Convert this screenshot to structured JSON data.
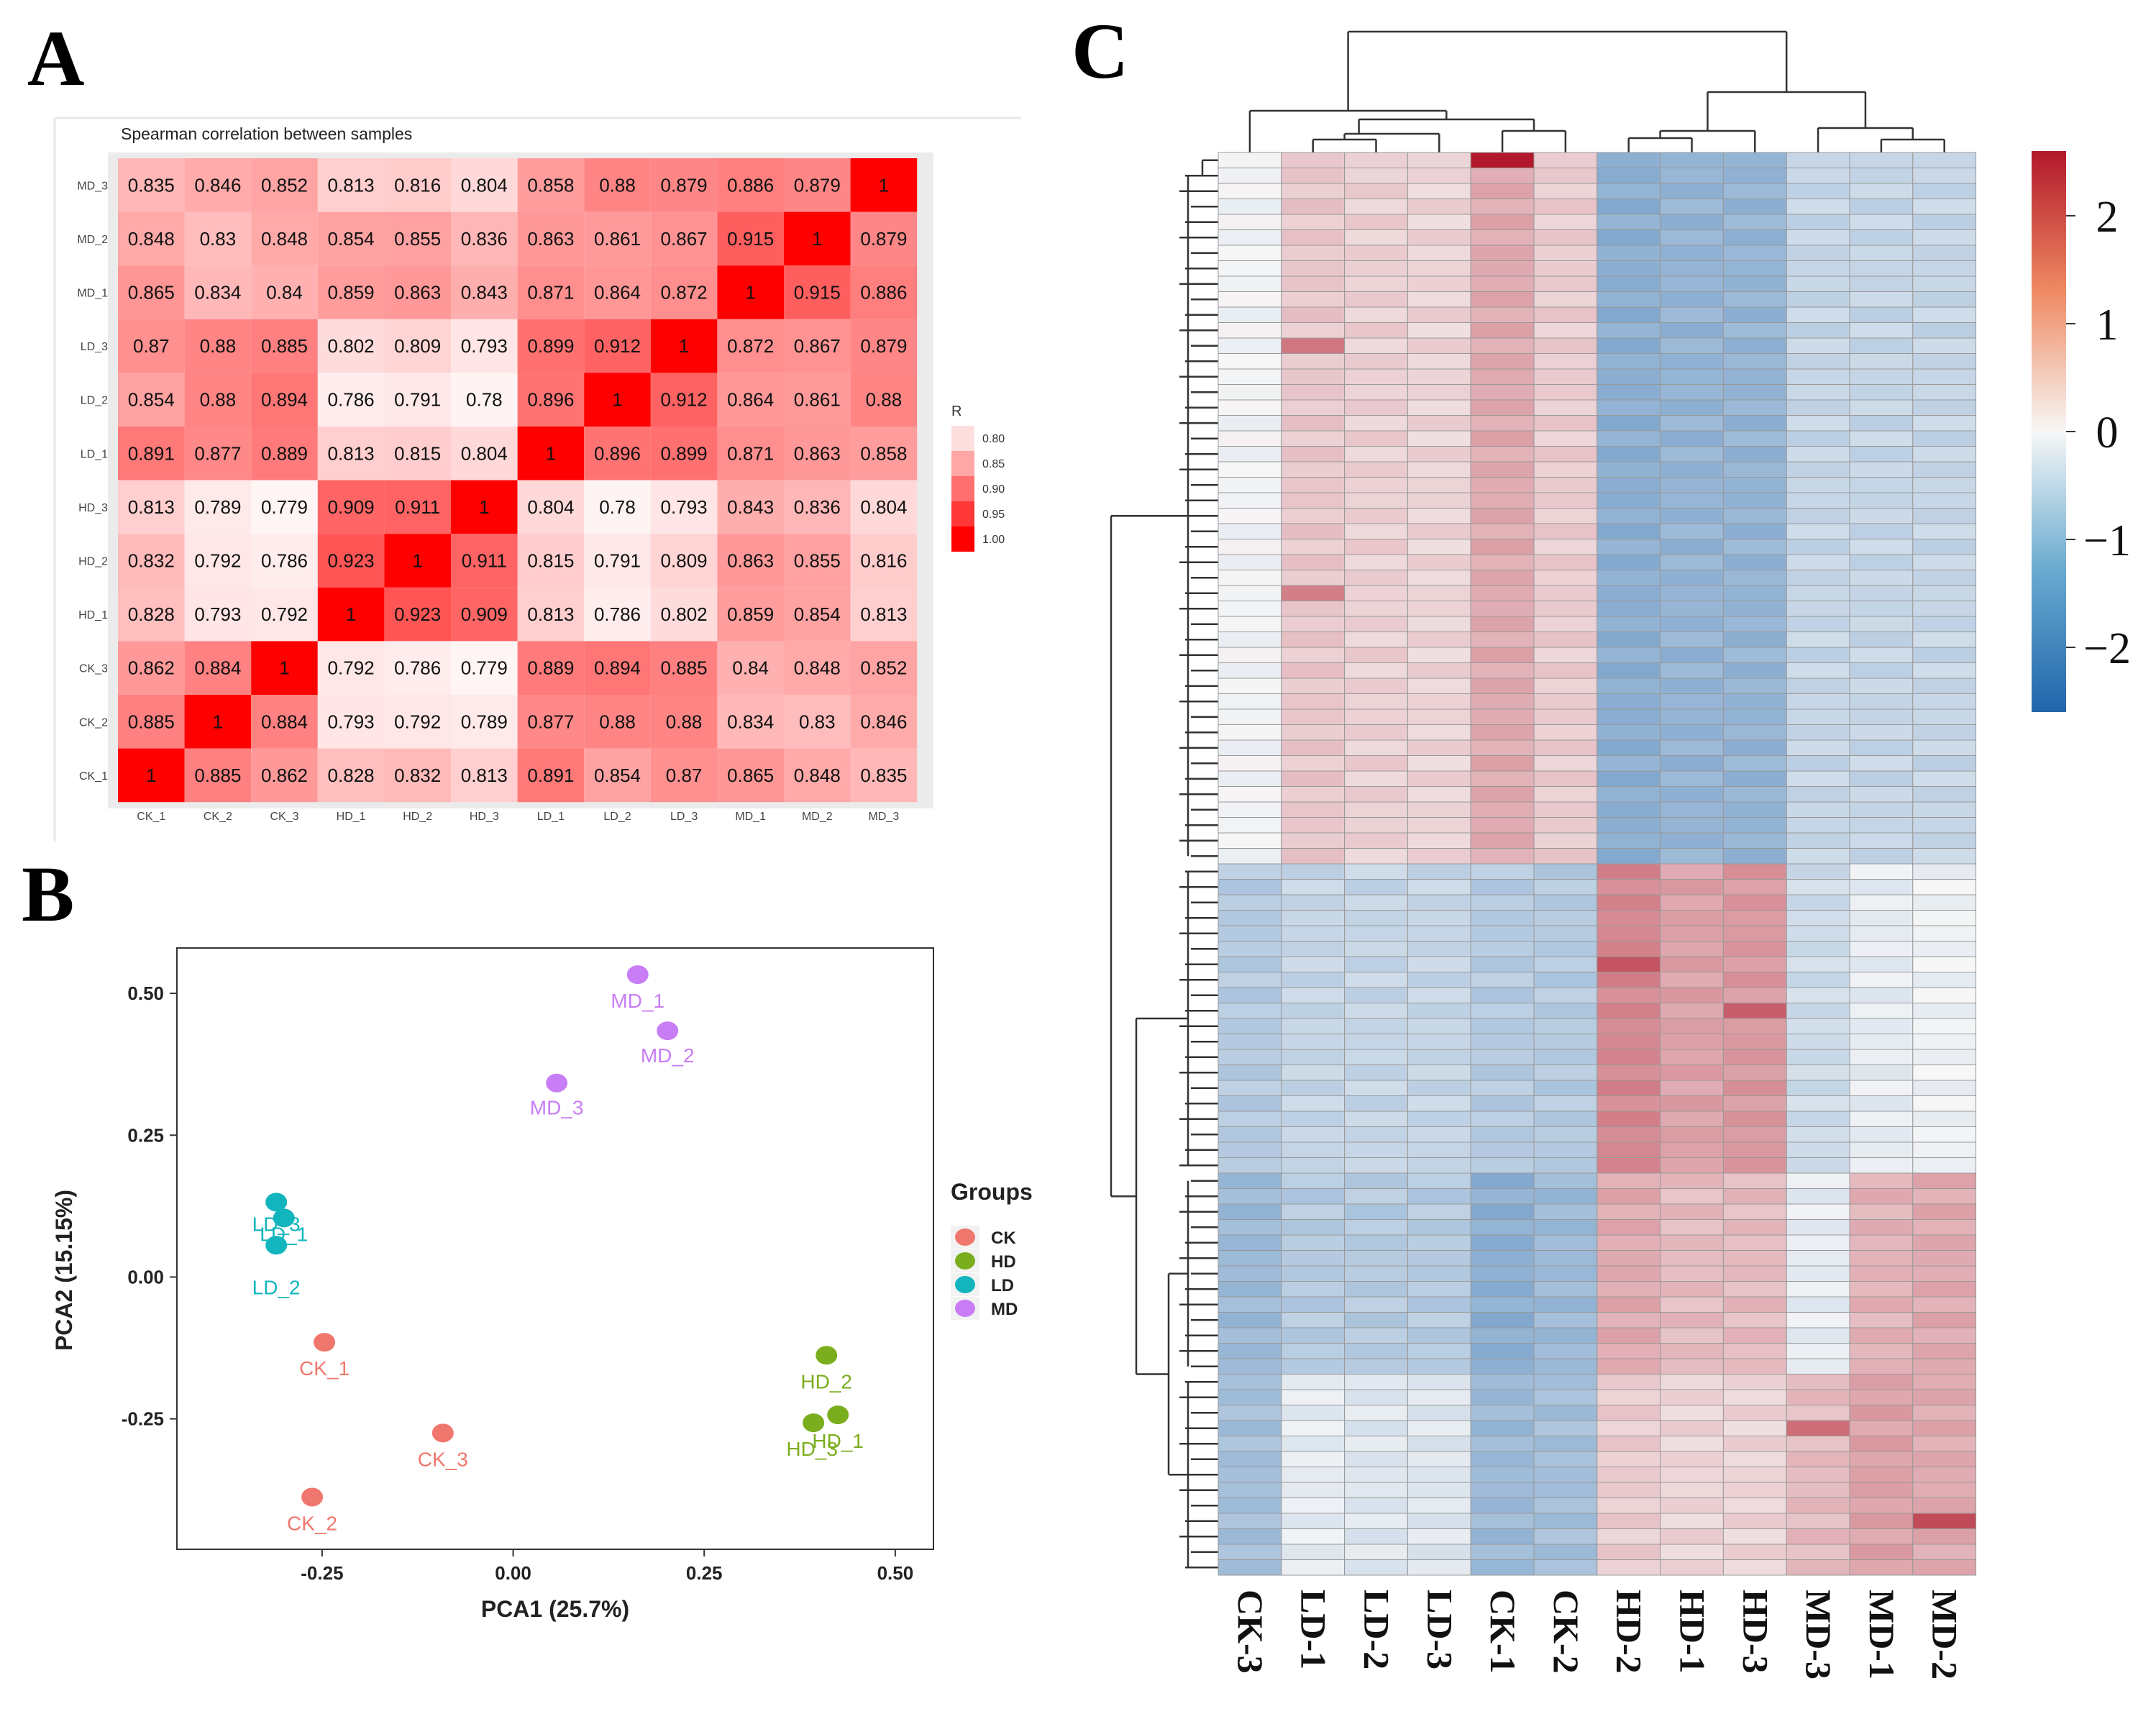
{
  "panel_labels": {
    "a": "A",
    "b": "B",
    "c": "C"
  },
  "colors": {
    "corr_low": "#ffffff",
    "corr_high": "#ff0000",
    "panel_bg": "#ebebeb",
    "ck": "#f0776d",
    "hd": "#7bae1e",
    "ld": "#12b5bd",
    "md": "#c87df5",
    "heat_low": "#2166ac",
    "heat_mid": "#f7f7f7",
    "heat_high": "#b2182b"
  },
  "chart_data": [
    {
      "type": "heatmap",
      "title": "Spearman correlation between samples",
      "x_labels": [
        "CK_1",
        "CK_2",
        "CK_3",
        "HD_1",
        "HD_2",
        "HD_3",
        "LD_1",
        "LD_2",
        "LD_3",
        "MD_1",
        "MD_2",
        "MD_3"
      ],
      "y_labels_top_to_bottom": [
        "MD_3",
        "MD_2",
        "MD_1",
        "LD_3",
        "LD_2",
        "LD_1",
        "HD_3",
        "HD_2",
        "HD_1",
        "CK_3",
        "CK_2",
        "CK_1"
      ],
      "cells": [
        [
          "0.835",
          "0.846",
          "0.852",
          "0.813",
          "0.816",
          "0.804",
          "0.858",
          "0.88",
          "0.879",
          "0.886",
          "0.879",
          "1"
        ],
        [
          "0.848",
          "0.83",
          "0.848",
          "0.854",
          "0.855",
          "0.836",
          "0.863",
          "0.861",
          "0.867",
          "0.915",
          "1",
          "0.879"
        ],
        [
          "0.865",
          "0.834",
          "0.84",
          "0.859",
          "0.863",
          "0.843",
          "0.871",
          "0.864",
          "0.872",
          "1",
          "0.915",
          "0.886"
        ],
        [
          "0.87",
          "0.88",
          "0.885",
          "0.802",
          "0.809",
          "0.793",
          "0.899",
          "0.912",
          "1",
          "0.872",
          "0.867",
          "0.879"
        ],
        [
          "0.854",
          "0.88",
          "0.894",
          "0.786",
          "0.791",
          "0.78",
          "0.896",
          "1",
          "0.912",
          "0.864",
          "0.861",
          "0.88"
        ],
        [
          "0.891",
          "0.877",
          "0.889",
          "0.813",
          "0.815",
          "0.804",
          "1",
          "0.896",
          "0.899",
          "0.871",
          "0.863",
          "0.858"
        ],
        [
          "0.813",
          "0.789",
          "0.779",
          "0.909",
          "0.911",
          "1",
          "0.804",
          "0.78",
          "0.793",
          "0.843",
          "0.836",
          "0.804"
        ],
        [
          "0.832",
          "0.792",
          "0.786",
          "0.923",
          "1",
          "0.911",
          "0.815",
          "0.791",
          "0.809",
          "0.863",
          "0.855",
          "0.816"
        ],
        [
          "0.828",
          "0.793",
          "0.792",
          "1",
          "0.923",
          "0.909",
          "0.813",
          "0.786",
          "0.802",
          "0.859",
          "0.854",
          "0.813"
        ],
        [
          "0.862",
          "0.884",
          "1",
          "0.792",
          "0.786",
          "0.779",
          "0.889",
          "0.894",
          "0.885",
          "0.84",
          "0.848",
          "0.852"
        ],
        [
          "0.885",
          "1",
          "0.884",
          "0.793",
          "0.792",
          "0.789",
          "0.877",
          "0.88",
          "0.88",
          "0.834",
          "0.83",
          "0.846"
        ],
        [
          "1",
          "0.885",
          "0.862",
          "0.828",
          "0.832",
          "0.813",
          "0.891",
          "0.854",
          "0.87",
          "0.865",
          "0.848",
          "0.835"
        ]
      ],
      "legend": {
        "title": "R",
        "ticks": [
          "0.80",
          "0.85",
          "0.90",
          "0.95",
          "1.00"
        ]
      }
    },
    {
      "type": "scatter",
      "xlabel": "PCA1 (25.7%)",
      "ylabel": "PCA2 (15.15%)",
      "xlim": [
        -0.44,
        0.55
      ],
      "ylim": [
        -0.48,
        0.58
      ],
      "xticks": [
        "-0.25",
        "0.00",
        "0.25",
        "0.50"
      ],
      "xtick_values": [
        -0.25,
        0.0,
        0.25,
        0.5
      ],
      "yticks": [
        "0.50",
        "0.25",
        "0.00",
        "-0.25"
      ],
      "ytick_values": [
        0.5,
        0.25,
        0.0,
        -0.25
      ],
      "legend_title": "Groups",
      "legend": [
        {
          "name": "CK",
          "color": "#f0776d"
        },
        {
          "name": "HD",
          "color": "#7bae1e"
        },
        {
          "name": "LD",
          "color": "#12b5bd"
        },
        {
          "name": "MD",
          "color": "#c87df5"
        }
      ],
      "points": [
        {
          "label": "MD_1",
          "group": "MD",
          "x": 0.163,
          "y": 0.533
        },
        {
          "label": "MD_2",
          "group": "MD",
          "x": 0.202,
          "y": 0.434
        },
        {
          "label": "MD_3",
          "group": "MD",
          "x": 0.057,
          "y": 0.342
        },
        {
          "label": "LD_3",
          "group": "LD",
          "x": -0.31,
          "y": 0.132
        },
        {
          "label": "LD_1",
          "group": "LD",
          "x": -0.3,
          "y": 0.104
        },
        {
          "label": "LD_2",
          "group": "LD",
          "x": -0.31,
          "y": 0.056
        },
        {
          "label": "CK_1",
          "group": "CK",
          "x": -0.247,
          "y": -0.115
        },
        {
          "label": "CK_3",
          "group": "CK",
          "x": -0.092,
          "y": -0.275
        },
        {
          "label": "CK_2",
          "group": "CK",
          "x": -0.263,
          "y": -0.388
        },
        {
          "label": "HD_2",
          "group": "HD",
          "x": 0.41,
          "y": -0.138
        },
        {
          "label": "HD_1",
          "group": "HD",
          "x": 0.425,
          "y": -0.243
        },
        {
          "label": "HD_3",
          "group": "HD",
          "x": 0.393,
          "y": -0.257
        }
      ]
    },
    {
      "type": "heatmap",
      "subtype": "clustered-zscore",
      "columns": [
        "CK-3",
        "LD-1",
        "LD-2",
        "LD-3",
        "CK-1",
        "CK-2",
        "HD-2",
        "HD-1",
        "HD-3",
        "MD-3",
        "MD-1",
        "MD-2"
      ],
      "n_rows": 92,
      "row_blocks": [
        {
          "rows": 46,
          "values": [
            -0.05,
            0.55,
            0.45,
            0.4,
            0.9,
            0.5,
            -1.3,
            -1.2,
            -1.2,
            -0.6,
            -0.6,
            -0.6
          ]
        },
        {
          "rows": 20,
          "values": [
            -0.8,
            -0.6,
            -0.6,
            -0.6,
            -0.8,
            -0.8,
            1.3,
            1.0,
            1.1,
            -0.5,
            -0.2,
            -0.1
          ]
        },
        {
          "rows": 13,
          "values": [
            -1.1,
            -0.8,
            -0.8,
            -0.8,
            -1.3,
            -1.1,
            0.9,
            0.7,
            0.7,
            -0.2,
            0.8,
            0.9
          ]
        },
        {
          "rows": 13,
          "values": [
            -1.0,
            -0.2,
            -0.3,
            -0.3,
            -1.1,
            -1.0,
            0.5,
            0.4,
            0.4,
            0.7,
            1.0,
            0.9
          ]
        }
      ],
      "legend_ticks": [
        "2",
        "1",
        "0",
        "−1",
        "−2"
      ],
      "legend_tick_values": [
        2,
        1,
        0,
        -1,
        -2
      ],
      "legend_range": [
        -2.6,
        2.6
      ]
    }
  ]
}
